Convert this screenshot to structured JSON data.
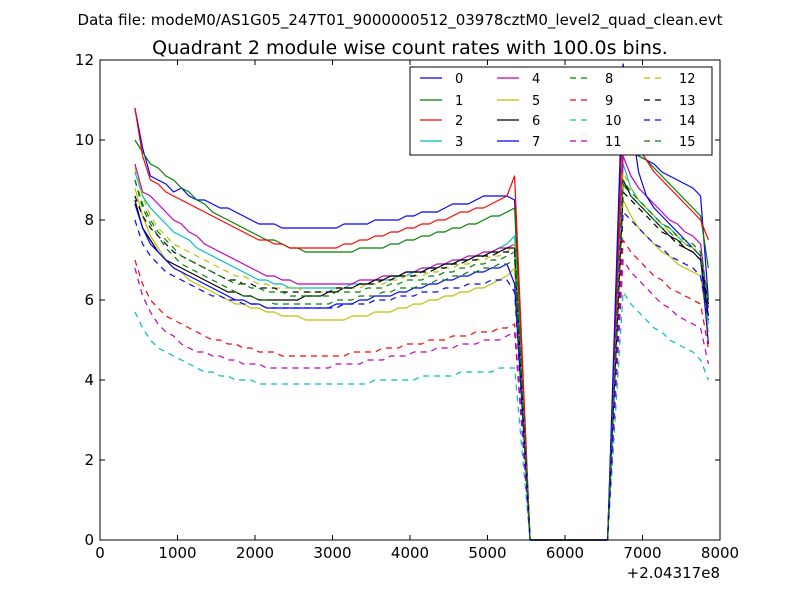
{
  "figure": {
    "suptitle": "Data file: modeM0/AS1G05_247T01_9000000512_03978cztM0_level2_quad_clean.evt"
  },
  "chart_data": {
    "type": "line",
    "title": "Quadrant 2 module wise count rates with 100.0s bins.",
    "xlabel": "",
    "ylabel": "",
    "x_offset_label": "+2.04317e8",
    "xlim": [
      0,
      8000
    ],
    "ylim": [
      0,
      12
    ],
    "x_ticks": [
      0,
      1000,
      2000,
      3000,
      4000,
      5000,
      6000,
      7000,
      8000
    ],
    "x_tick_labels": [
      "0",
      "1000",
      "2000",
      "3000",
      "4000",
      "5000",
      "6000",
      "7000",
      "8000"
    ],
    "y_ticks": [
      0,
      2,
      4,
      6,
      8,
      10,
      12
    ],
    "y_tick_labels": [
      "0",
      "2",
      "4",
      "6",
      "8",
      "10",
      "12"
    ],
    "grid": false,
    "legend_placement": "top-right",
    "legend_columns": 4,
    "x": [
      450,
      550,
      650,
      750,
      850,
      950,
      1050,
      1150,
      1250,
      1350,
      1450,
      1550,
      1650,
      1750,
      1850,
      1950,
      2050,
      2150,
      2250,
      2350,
      2450,
      2550,
      2650,
      2750,
      2850,
      2950,
      3050,
      3150,
      3250,
      3350,
      3450,
      3550,
      3650,
      3750,
      3850,
      3950,
      4050,
      4150,
      4250,
      4350,
      4450,
      4550,
      4650,
      4750,
      4850,
      4950,
      5050,
      5150,
      5250,
      5350,
      5550,
      6550,
      6750,
      6850,
      6950,
      7050,
      7150,
      7250,
      7350,
      7450,
      7550,
      7650,
      7750,
      7850
    ],
    "series": [
      {
        "name": "0",
        "color": "#0000ff",
        "dash": "solid",
        "values": [
          10.8,
          9.8,
          9.1,
          9.0,
          8.9,
          8.7,
          8.8,
          8.6,
          8.5,
          8.5,
          8.4,
          8.3,
          8.3,
          8.2,
          8.1,
          8.0,
          7.9,
          7.9,
          7.9,
          7.8,
          7.8,
          7.8,
          7.8,
          7.8,
          7.8,
          7.8,
          7.8,
          7.9,
          7.9,
          7.9,
          7.9,
          8.0,
          8.0,
          8.0,
          8.0,
          8.1,
          8.1,
          8.2,
          8.2,
          8.2,
          8.3,
          8.4,
          8.4,
          8.4,
          8.5,
          8.6,
          8.6,
          8.6,
          8.6,
          8.5,
          0,
          0,
          11.0,
          9.9,
          9.6,
          9.5,
          9.4,
          9.2,
          9.1,
          9.0,
          8.9,
          8.8,
          8.6,
          6.0
        ]
      },
      {
        "name": "1",
        "color": "#008000",
        "dash": "solid",
        "values": [
          10.0,
          9.7,
          9.4,
          9.3,
          9.1,
          9.0,
          8.8,
          8.7,
          8.5,
          8.4,
          8.2,
          8.1,
          8.0,
          7.9,
          7.8,
          7.7,
          7.6,
          7.5,
          7.5,
          7.4,
          7.3,
          7.3,
          7.2,
          7.2,
          7.2,
          7.2,
          7.2,
          7.2,
          7.2,
          7.3,
          7.3,
          7.3,
          7.3,
          7.4,
          7.4,
          7.5,
          7.5,
          7.6,
          7.6,
          7.7,
          7.7,
          7.8,
          7.8,
          7.9,
          7.9,
          8.0,
          8.1,
          8.1,
          8.2,
          8.3,
          0,
          0,
          9.8,
          9.7,
          9.6,
          9.5,
          9.3,
          9.1,
          8.9,
          8.7,
          8.5,
          8.3,
          8.1,
          6.8
        ]
      },
      {
        "name": "2",
        "color": "#ff0000",
        "dash": "solid",
        "values": [
          10.8,
          9.6,
          9.0,
          8.9,
          8.7,
          8.6,
          8.5,
          8.4,
          8.3,
          8.2,
          8.1,
          8.0,
          7.9,
          7.8,
          7.7,
          7.6,
          7.5,
          7.5,
          7.4,
          7.4,
          7.3,
          7.3,
          7.3,
          7.3,
          7.3,
          7.3,
          7.3,
          7.4,
          7.4,
          7.5,
          7.5,
          7.6,
          7.6,
          7.7,
          7.7,
          7.8,
          7.8,
          7.9,
          7.9,
          8.0,
          8.0,
          8.1,
          8.2,
          8.2,
          8.3,
          8.3,
          8.4,
          8.5,
          8.6,
          9.1,
          0,
          0,
          10.8,
          10.2,
          9.8,
          9.5,
          9.2,
          9.0,
          8.8,
          8.6,
          8.4,
          8.2,
          8.0,
          7.5
        ]
      },
      {
        "name": "3",
        "color": "#00bfbf",
        "dash": "solid",
        "values": [
          9.2,
          8.6,
          8.3,
          8.1,
          7.9,
          7.7,
          7.6,
          7.5,
          7.3,
          7.2,
          7.1,
          7.0,
          6.9,
          6.8,
          6.7,
          6.6,
          6.5,
          6.5,
          6.4,
          6.4,
          6.3,
          6.3,
          6.3,
          6.3,
          6.3,
          6.3,
          6.3,
          6.3,
          6.4,
          6.4,
          6.4,
          6.5,
          6.5,
          6.5,
          6.6,
          6.6,
          6.7,
          6.7,
          6.8,
          6.8,
          6.9,
          6.9,
          7.0,
          7.0,
          7.1,
          7.1,
          7.2,
          7.3,
          7.4,
          7.6,
          0,
          0,
          9.4,
          8.8,
          8.5,
          8.3,
          8.1,
          7.9,
          7.8,
          7.6,
          7.4,
          7.3,
          7.1,
          5.4
        ]
      },
      {
        "name": "4",
        "color": "#bf00bf",
        "dash": "solid",
        "values": [
          9.4,
          8.7,
          8.6,
          8.4,
          8.2,
          8.0,
          7.9,
          7.7,
          7.6,
          7.4,
          7.3,
          7.2,
          7.1,
          7.0,
          6.9,
          6.8,
          6.7,
          6.6,
          6.6,
          6.5,
          6.5,
          6.4,
          6.4,
          6.4,
          6.4,
          6.4,
          6.4,
          6.4,
          6.4,
          6.5,
          6.5,
          6.5,
          6.6,
          6.6,
          6.6,
          6.7,
          6.7,
          6.8,
          6.8,
          6.9,
          6.9,
          7.0,
          7.0,
          7.1,
          7.1,
          7.2,
          7.2,
          7.3,
          7.3,
          7.4,
          0,
          0,
          9.6,
          9.1,
          8.8,
          8.6,
          8.4,
          8.2,
          8.0,
          7.9,
          7.7,
          7.6,
          7.4,
          5.8
        ]
      },
      {
        "name": "5",
        "color": "#bfbf00",
        "dash": "solid",
        "values": [
          8.8,
          8.1,
          7.6,
          7.3,
          7.0,
          6.8,
          6.7,
          6.5,
          6.4,
          6.3,
          6.2,
          6.1,
          6.0,
          5.9,
          5.9,
          5.8,
          5.8,
          5.7,
          5.7,
          5.6,
          5.6,
          5.6,
          5.5,
          5.5,
          5.5,
          5.5,
          5.5,
          5.5,
          5.6,
          5.6,
          5.6,
          5.7,
          5.7,
          5.7,
          5.8,
          5.8,
          5.9,
          5.9,
          6.0,
          6.0,
          6.1,
          6.1,
          6.2,
          6.2,
          6.3,
          6.3,
          6.4,
          6.5,
          6.6,
          6.8,
          0,
          0,
          8.5,
          8.1,
          7.8,
          7.6,
          7.4,
          7.2,
          7.1,
          6.9,
          6.8,
          6.7,
          6.6,
          5.2
        ]
      },
      {
        "name": "6",
        "color": "#000000",
        "dash": "solid",
        "values": [
          8.5,
          7.8,
          7.5,
          7.2,
          7.0,
          6.9,
          6.8,
          6.7,
          6.6,
          6.5,
          6.4,
          6.3,
          6.2,
          6.2,
          6.1,
          6.1,
          6.0,
          6.0,
          6.0,
          6.0,
          6.0,
          6.0,
          6.1,
          6.1,
          6.1,
          6.2,
          6.2,
          6.3,
          6.3,
          6.4,
          6.4,
          6.5,
          6.5,
          6.6,
          6.6,
          6.7,
          6.7,
          6.7,
          6.8,
          6.8,
          6.9,
          6.9,
          7.0,
          7.0,
          7.1,
          7.1,
          7.2,
          7.2,
          7.3,
          7.3,
          0,
          0,
          9.0,
          8.6,
          8.4,
          8.2,
          8.0,
          7.8,
          7.6,
          7.5,
          7.3,
          7.2,
          7.0,
          5.6
        ]
      },
      {
        "name": "7",
        "color": "#0000ff",
        "dash": "solid",
        "values": [
          8.4,
          7.8,
          7.4,
          7.2,
          7.0,
          6.8,
          6.7,
          6.6,
          6.5,
          6.4,
          6.3,
          6.2,
          6.1,
          6.0,
          6.0,
          5.9,
          5.9,
          5.8,
          5.8,
          5.8,
          5.8,
          5.8,
          5.8,
          5.8,
          5.8,
          5.8,
          5.9,
          5.9,
          5.9,
          6.0,
          6.0,
          6.1,
          6.1,
          6.1,
          6.2,
          6.2,
          6.3,
          6.3,
          6.4,
          6.4,
          6.5,
          6.5,
          6.6,
          6.6,
          6.7,
          6.7,
          6.8,
          6.8,
          6.9,
          6.4,
          0,
          0,
          11.9,
          10.5,
          9.2,
          8.6,
          8.3,
          8.1,
          7.9,
          7.7,
          7.5,
          7.3,
          7.1,
          4.9
        ]
      },
      {
        "name": "8",
        "color": "#008000",
        "dash": "dashed",
        "values": [
          9.0,
          8.3,
          7.9,
          7.6,
          7.3,
          7.1,
          6.9,
          6.8,
          6.7,
          6.6,
          6.5,
          6.4,
          6.3,
          6.2,
          6.1,
          6.1,
          6.0,
          6.0,
          5.9,
          5.9,
          5.9,
          5.9,
          5.9,
          5.9,
          5.9,
          5.9,
          6.0,
          6.0,
          6.0,
          6.1,
          6.1,
          6.1,
          6.2,
          6.2,
          6.3,
          6.3,
          6.3,
          6.4,
          6.4,
          6.5,
          6.5,
          6.6,
          6.6,
          6.7,
          6.7,
          6.8,
          6.8,
          6.9,
          6.9,
          7.0,
          0,
          0,
          8.9,
          8.6,
          8.4,
          8.2,
          8.0,
          7.8,
          7.7,
          7.5,
          7.4,
          7.3,
          7.1,
          5.9
        ]
      },
      {
        "name": "9",
        "color": "#ff0000",
        "dash": "dashed",
        "values": [
          7.0,
          6.4,
          6.0,
          5.8,
          5.6,
          5.5,
          5.4,
          5.3,
          5.2,
          5.1,
          5.0,
          5.0,
          4.9,
          4.9,
          4.8,
          4.8,
          4.7,
          4.7,
          4.7,
          4.6,
          4.6,
          4.6,
          4.6,
          4.6,
          4.6,
          4.6,
          4.6,
          4.6,
          4.7,
          4.7,
          4.7,
          4.7,
          4.8,
          4.8,
          4.8,
          4.9,
          4.9,
          4.9,
          5.0,
          5.0,
          5.0,
          5.1,
          5.1,
          5.1,
          5.2,
          5.2,
          5.2,
          5.3,
          5.3,
          5.4,
          0,
          0,
          7.5,
          7.2,
          7.0,
          6.8,
          6.6,
          6.5,
          6.3,
          6.2,
          6.1,
          6.0,
          5.9,
          4.8
        ]
      },
      {
        "name": "10",
        "color": "#00bfbf",
        "dash": "dashed",
        "values": [
          5.7,
          5.3,
          5.0,
          4.8,
          4.7,
          4.6,
          4.5,
          4.4,
          4.3,
          4.2,
          4.2,
          4.1,
          4.1,
          4.0,
          4.0,
          4.0,
          3.9,
          3.9,
          3.9,
          3.9,
          3.9,
          3.9,
          3.9,
          3.9,
          3.9,
          3.9,
          3.9,
          3.9,
          3.9,
          3.9,
          3.9,
          4.0,
          4.0,
          4.0,
          4.0,
          4.0,
          4.0,
          4.1,
          4.1,
          4.1,
          4.1,
          4.1,
          4.2,
          4.2,
          4.2,
          4.2,
          4.2,
          4.3,
          4.3,
          4.3,
          0,
          0,
          6.2,
          5.9,
          5.7,
          5.5,
          5.3,
          5.2,
          5.0,
          4.9,
          4.8,
          4.7,
          4.5,
          4.0
        ]
      },
      {
        "name": "11",
        "color": "#bf00bf",
        "dash": "dashed",
        "values": [
          6.8,
          6.1,
          5.7,
          5.4,
          5.2,
          5.1,
          4.9,
          4.8,
          4.7,
          4.7,
          4.6,
          4.6,
          4.5,
          4.5,
          4.4,
          4.4,
          4.4,
          4.3,
          4.3,
          4.3,
          4.3,
          4.3,
          4.3,
          4.3,
          4.3,
          4.3,
          4.4,
          4.4,
          4.4,
          4.4,
          4.5,
          4.5,
          4.5,
          4.6,
          4.6,
          4.6,
          4.7,
          4.7,
          4.7,
          4.8,
          4.8,
          4.8,
          4.9,
          4.9,
          4.9,
          5.0,
          5.0,
          5.0,
          5.1,
          5.2,
          0,
          0,
          7.0,
          6.7,
          6.5,
          6.3,
          6.1,
          5.9,
          5.8,
          5.6,
          5.5,
          5.4,
          5.3,
          4.4
        ]
      },
      {
        "name": "12",
        "color": "#bfbf00",
        "dash": "dashed",
        "values": [
          9.3,
          8.6,
          8.1,
          7.8,
          7.6,
          7.4,
          7.3,
          7.2,
          7.1,
          7.0,
          6.9,
          6.8,
          6.7,
          6.6,
          6.6,
          6.5,
          6.4,
          6.4,
          6.3,
          6.3,
          6.3,
          6.3,
          6.2,
          6.2,
          6.2,
          6.2,
          6.3,
          6.3,
          6.3,
          6.3,
          6.4,
          6.4,
          6.4,
          6.5,
          6.5,
          6.6,
          6.6,
          6.6,
          6.7,
          6.7,
          6.8,
          6.8,
          6.9,
          6.9,
          7.0,
          7.0,
          7.1,
          7.1,
          7.2,
          7.4,
          0,
          0,
          9.2,
          8.8,
          8.5,
          8.3,
          8.1,
          7.9,
          7.7,
          7.6,
          7.4,
          7.3,
          7.2,
          5.9
        ]
      },
      {
        "name": "13",
        "color": "#000000",
        "dash": "dashed",
        "values": [
          8.6,
          8.1,
          7.8,
          7.6,
          7.4,
          7.2,
          7.1,
          7.0,
          6.9,
          6.8,
          6.7,
          6.6,
          6.5,
          6.5,
          6.4,
          6.4,
          6.3,
          6.3,
          6.3,
          6.2,
          6.2,
          6.2,
          6.2,
          6.2,
          6.2,
          6.2,
          6.3,
          6.3,
          6.3,
          6.4,
          6.4,
          6.4,
          6.5,
          6.5,
          6.6,
          6.6,
          6.6,
          6.7,
          6.7,
          6.8,
          6.8,
          6.9,
          6.9,
          7.0,
          7.0,
          7.1,
          7.1,
          7.2,
          7.2,
          7.2,
          0,
          0,
          8.7,
          8.5,
          8.3,
          8.1,
          7.9,
          7.7,
          7.6,
          7.4,
          7.3,
          7.2,
          7.0,
          5.9
        ]
      },
      {
        "name": "14",
        "color": "#0000ff",
        "dash": "dashed",
        "values": [
          8.0,
          7.4,
          7.1,
          6.9,
          6.7,
          6.6,
          6.5,
          6.4,
          6.3,
          6.2,
          6.1,
          6.1,
          6.0,
          6.0,
          5.9,
          5.9,
          5.9,
          5.8,
          5.8,
          5.8,
          5.8,
          5.8,
          5.8,
          5.8,
          5.8,
          5.8,
          5.8,
          5.9,
          5.9,
          5.9,
          5.9,
          6.0,
          6.0,
          6.0,
          6.1,
          6.1,
          6.1,
          6.2,
          6.2,
          6.2,
          6.3,
          6.3,
          6.3,
          6.4,
          6.4,
          6.4,
          6.5,
          6.5,
          6.5,
          6.2,
          0,
          0,
          8.2,
          8.0,
          7.8,
          7.6,
          7.4,
          7.3,
          7.1,
          7.0,
          6.9,
          6.8,
          6.6,
          5.5
        ]
      },
      {
        "name": "15",
        "color": "#008000",
        "dash": "dashed",
        "values": [
          9.0,
          8.4,
          8.0,
          7.7,
          7.5,
          7.3,
          7.1,
          7.0,
          6.9,
          6.8,
          6.7,
          6.6,
          6.5,
          6.4,
          6.4,
          6.3,
          6.3,
          6.2,
          6.2,
          6.2,
          6.1,
          6.1,
          6.1,
          6.1,
          6.1,
          6.1,
          6.2,
          6.2,
          6.2,
          6.2,
          6.3,
          6.3,
          6.3,
          6.4,
          6.4,
          6.5,
          6.5,
          6.5,
          6.6,
          6.6,
          6.7,
          6.7,
          6.8,
          6.8,
          6.9,
          6.9,
          7.0,
          7.0,
          7.1,
          7.2,
          0,
          0,
          9.0,
          8.7,
          8.5,
          8.3,
          8.1,
          7.9,
          7.8,
          7.6,
          7.5,
          7.4,
          7.2,
          6.0
        ]
      }
    ]
  }
}
